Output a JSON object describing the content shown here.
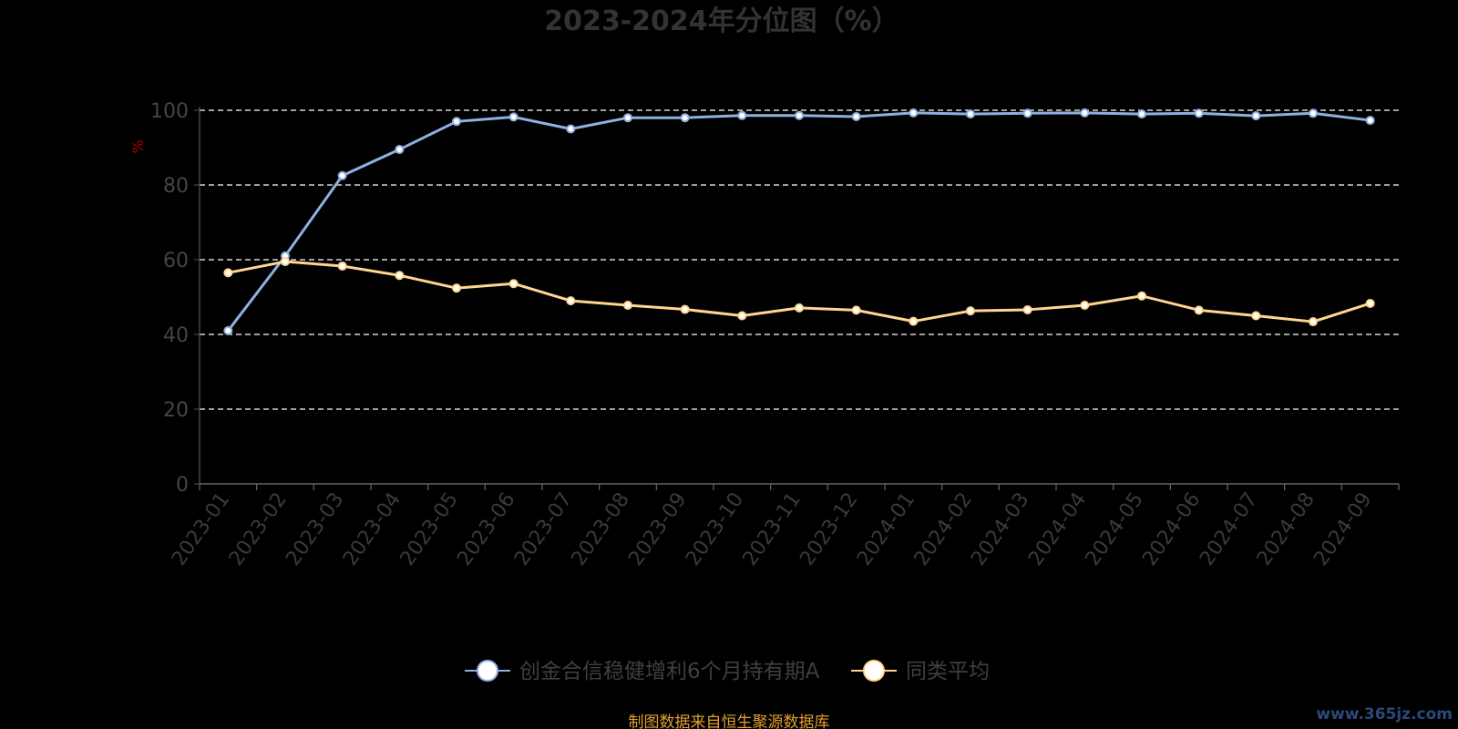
{
  "chart_data": {
    "type": "line",
    "title": "2023-2024年分位图（%）",
    "ylabel": "%",
    "ylim": [
      0,
      100
    ],
    "yticks": [
      0,
      20,
      40,
      60,
      80,
      100
    ],
    "grid": true,
    "legend_position": "bottom",
    "categories": [
      "2023-01",
      "2023-02",
      "2023-03",
      "2023-04",
      "2023-05",
      "2023-06",
      "2023-07",
      "2023-08",
      "2023-09",
      "2023-10",
      "2023-11",
      "2023-12",
      "2024-01",
      "2024-02",
      "2024-03",
      "2024-04",
      "2024-05",
      "2024-06",
      "2024-07",
      "2024-08",
      "2024-09"
    ],
    "series": [
      {
        "name": "创金合信稳健增利6个月持有期A",
        "color": "#8fb0e0",
        "values": [
          41,
          61,
          82.5,
          89.5,
          97,
          98.2,
          95,
          98,
          98,
          98.6,
          98.6,
          98.3,
          99.3,
          99,
          99.2,
          99.3,
          99,
          99.2,
          98.5,
          99.2,
          97.3
        ]
      },
      {
        "name": "同类平均",
        "color": "#ffd58f",
        "values": [
          56.5,
          59.5,
          58.3,
          55.8,
          52.4,
          53.6,
          49,
          47.8,
          46.7,
          45,
          47.1,
          46.5,
          43.5,
          46.3,
          46.6,
          47.8,
          50.3,
          46.5,
          45,
          43.4,
          48.3
        ]
      }
    ]
  },
  "source_note": "制图数据来自恒生聚源数据库",
  "watermark": "www.365jz.com"
}
